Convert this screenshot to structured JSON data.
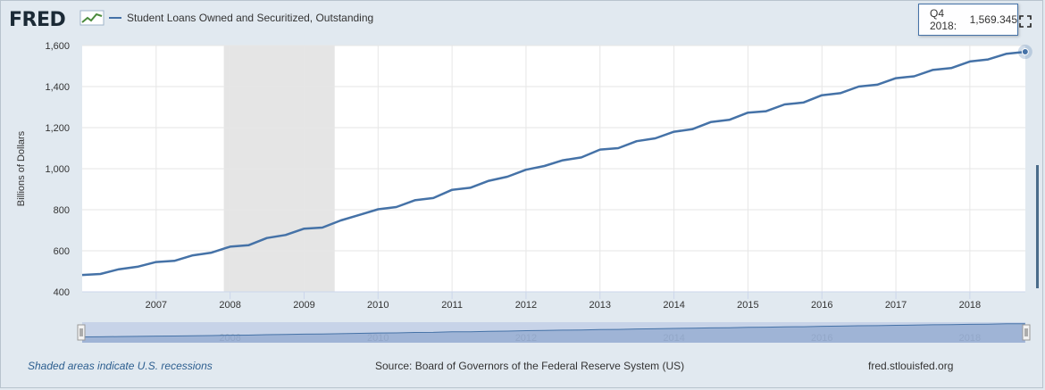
{
  "header": {
    "logo_text": "FRED",
    "logo_icon": "fred-graph-icon"
  },
  "tooltip": {
    "label": "Q4 2018:",
    "value": "1,569.345"
  },
  "footer": {
    "recession_note": "Shaded areas indicate U.S. recessions",
    "source": "Source: Board of Governors of the Federal Reserve System (US)",
    "site": "fred.stlouisfed.org"
  },
  "colors": {
    "line": "#4572a7",
    "recession": "#e5e5e5",
    "navigator_fill": "#c7d3e8"
  },
  "navigator": {
    "labels": [
      "2008",
      "2010",
      "2012",
      "2014",
      "2016",
      "2018"
    ]
  },
  "chart_data": {
    "type": "line",
    "title": "",
    "ylabel": "Billions of Dollars",
    "xlabel": "",
    "ylim": [
      400,
      1600
    ],
    "xlim": [
      2006.0,
      2018.75
    ],
    "yticks": [
      "400",
      "600",
      "800",
      "1,000",
      "1,200",
      "1,400",
      "1,600"
    ],
    "xticks": [
      "2007",
      "2008",
      "2009",
      "2010",
      "2011",
      "2012",
      "2013",
      "2014",
      "2015",
      "2016",
      "2017",
      "2018"
    ],
    "grid": true,
    "legend": "top-left",
    "recessions": [
      {
        "start": "2007-12-01",
        "end": "2009-06-01"
      }
    ],
    "series": [
      {
        "name": "Student Loans Owned and Securitized, Outstanding",
        "x": [
          "2006-01-01",
          "2006-04-01",
          "2006-07-01",
          "2006-10-01",
          "2007-01-01",
          "2007-04-01",
          "2007-07-01",
          "2007-10-01",
          "2008-01-01",
          "2008-04-01",
          "2008-07-01",
          "2008-10-01",
          "2009-01-01",
          "2009-04-01",
          "2009-07-01",
          "2009-10-01",
          "2010-01-01",
          "2010-04-01",
          "2010-07-01",
          "2010-10-01",
          "2011-01-01",
          "2011-04-01",
          "2011-07-01",
          "2011-10-01",
          "2012-01-01",
          "2012-04-01",
          "2012-07-01",
          "2012-10-01",
          "2013-01-01",
          "2013-04-01",
          "2013-07-01",
          "2013-10-01",
          "2014-01-01",
          "2014-04-01",
          "2014-07-01",
          "2014-10-01",
          "2015-01-01",
          "2015-04-01",
          "2015-07-01",
          "2015-10-01",
          "2016-01-01",
          "2016-04-01",
          "2016-07-01",
          "2016-10-01",
          "2017-01-01",
          "2017-04-01",
          "2017-07-01",
          "2017-10-01",
          "2018-01-01",
          "2018-04-01",
          "2018-07-01",
          "2018-10-01"
        ],
        "values": [
          482,
          487,
          510,
          522,
          545,
          551,
          578,
          591,
          620,
          627,
          662,
          677,
          708,
          713,
          748,
          775,
          802,
          813,
          846,
          857,
          897,
          907,
          941,
          961,
          995,
          1013,
          1041,
          1055,
          1093,
          1100,
          1134,
          1148,
          1180,
          1192,
          1227,
          1238,
          1273,
          1280,
          1313,
          1322,
          1358,
          1368,
          1400,
          1409,
          1441,
          1450,
          1481,
          1490,
          1522,
          1532,
          1560,
          1569.345
        ]
      }
    ]
  }
}
